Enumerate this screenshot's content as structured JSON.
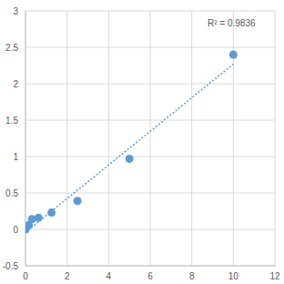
{
  "chart_data": {
    "type": "scatter",
    "x": [
      0,
      0.05,
      0.156,
      0.3125,
      0.625,
      1.25,
      2.5,
      5,
      10
    ],
    "values": [
      0,
      0.03,
      0.06,
      0.14,
      0.16,
      0.23,
      0.39,
      0.97,
      2.4
    ],
    "color": "#5b9bd5",
    "marker": "circle",
    "xlim": [
      0,
      12
    ],
    "ylim": [
      -0.5,
      3
    ],
    "xticks": [
      0,
      2,
      4,
      6,
      8,
      10,
      12
    ],
    "yticks": [
      -0.5,
      0,
      0.5,
      1,
      1.5,
      2,
      2.5,
      3
    ],
    "grid": true,
    "annotation": "R² = 0.9836",
    "trendline": {
      "x": [
        0,
        10
      ],
      "values": [
        -0.04,
        2.27
      ],
      "color": "#5b9bd5",
      "line_style": "dotted"
    }
  }
}
